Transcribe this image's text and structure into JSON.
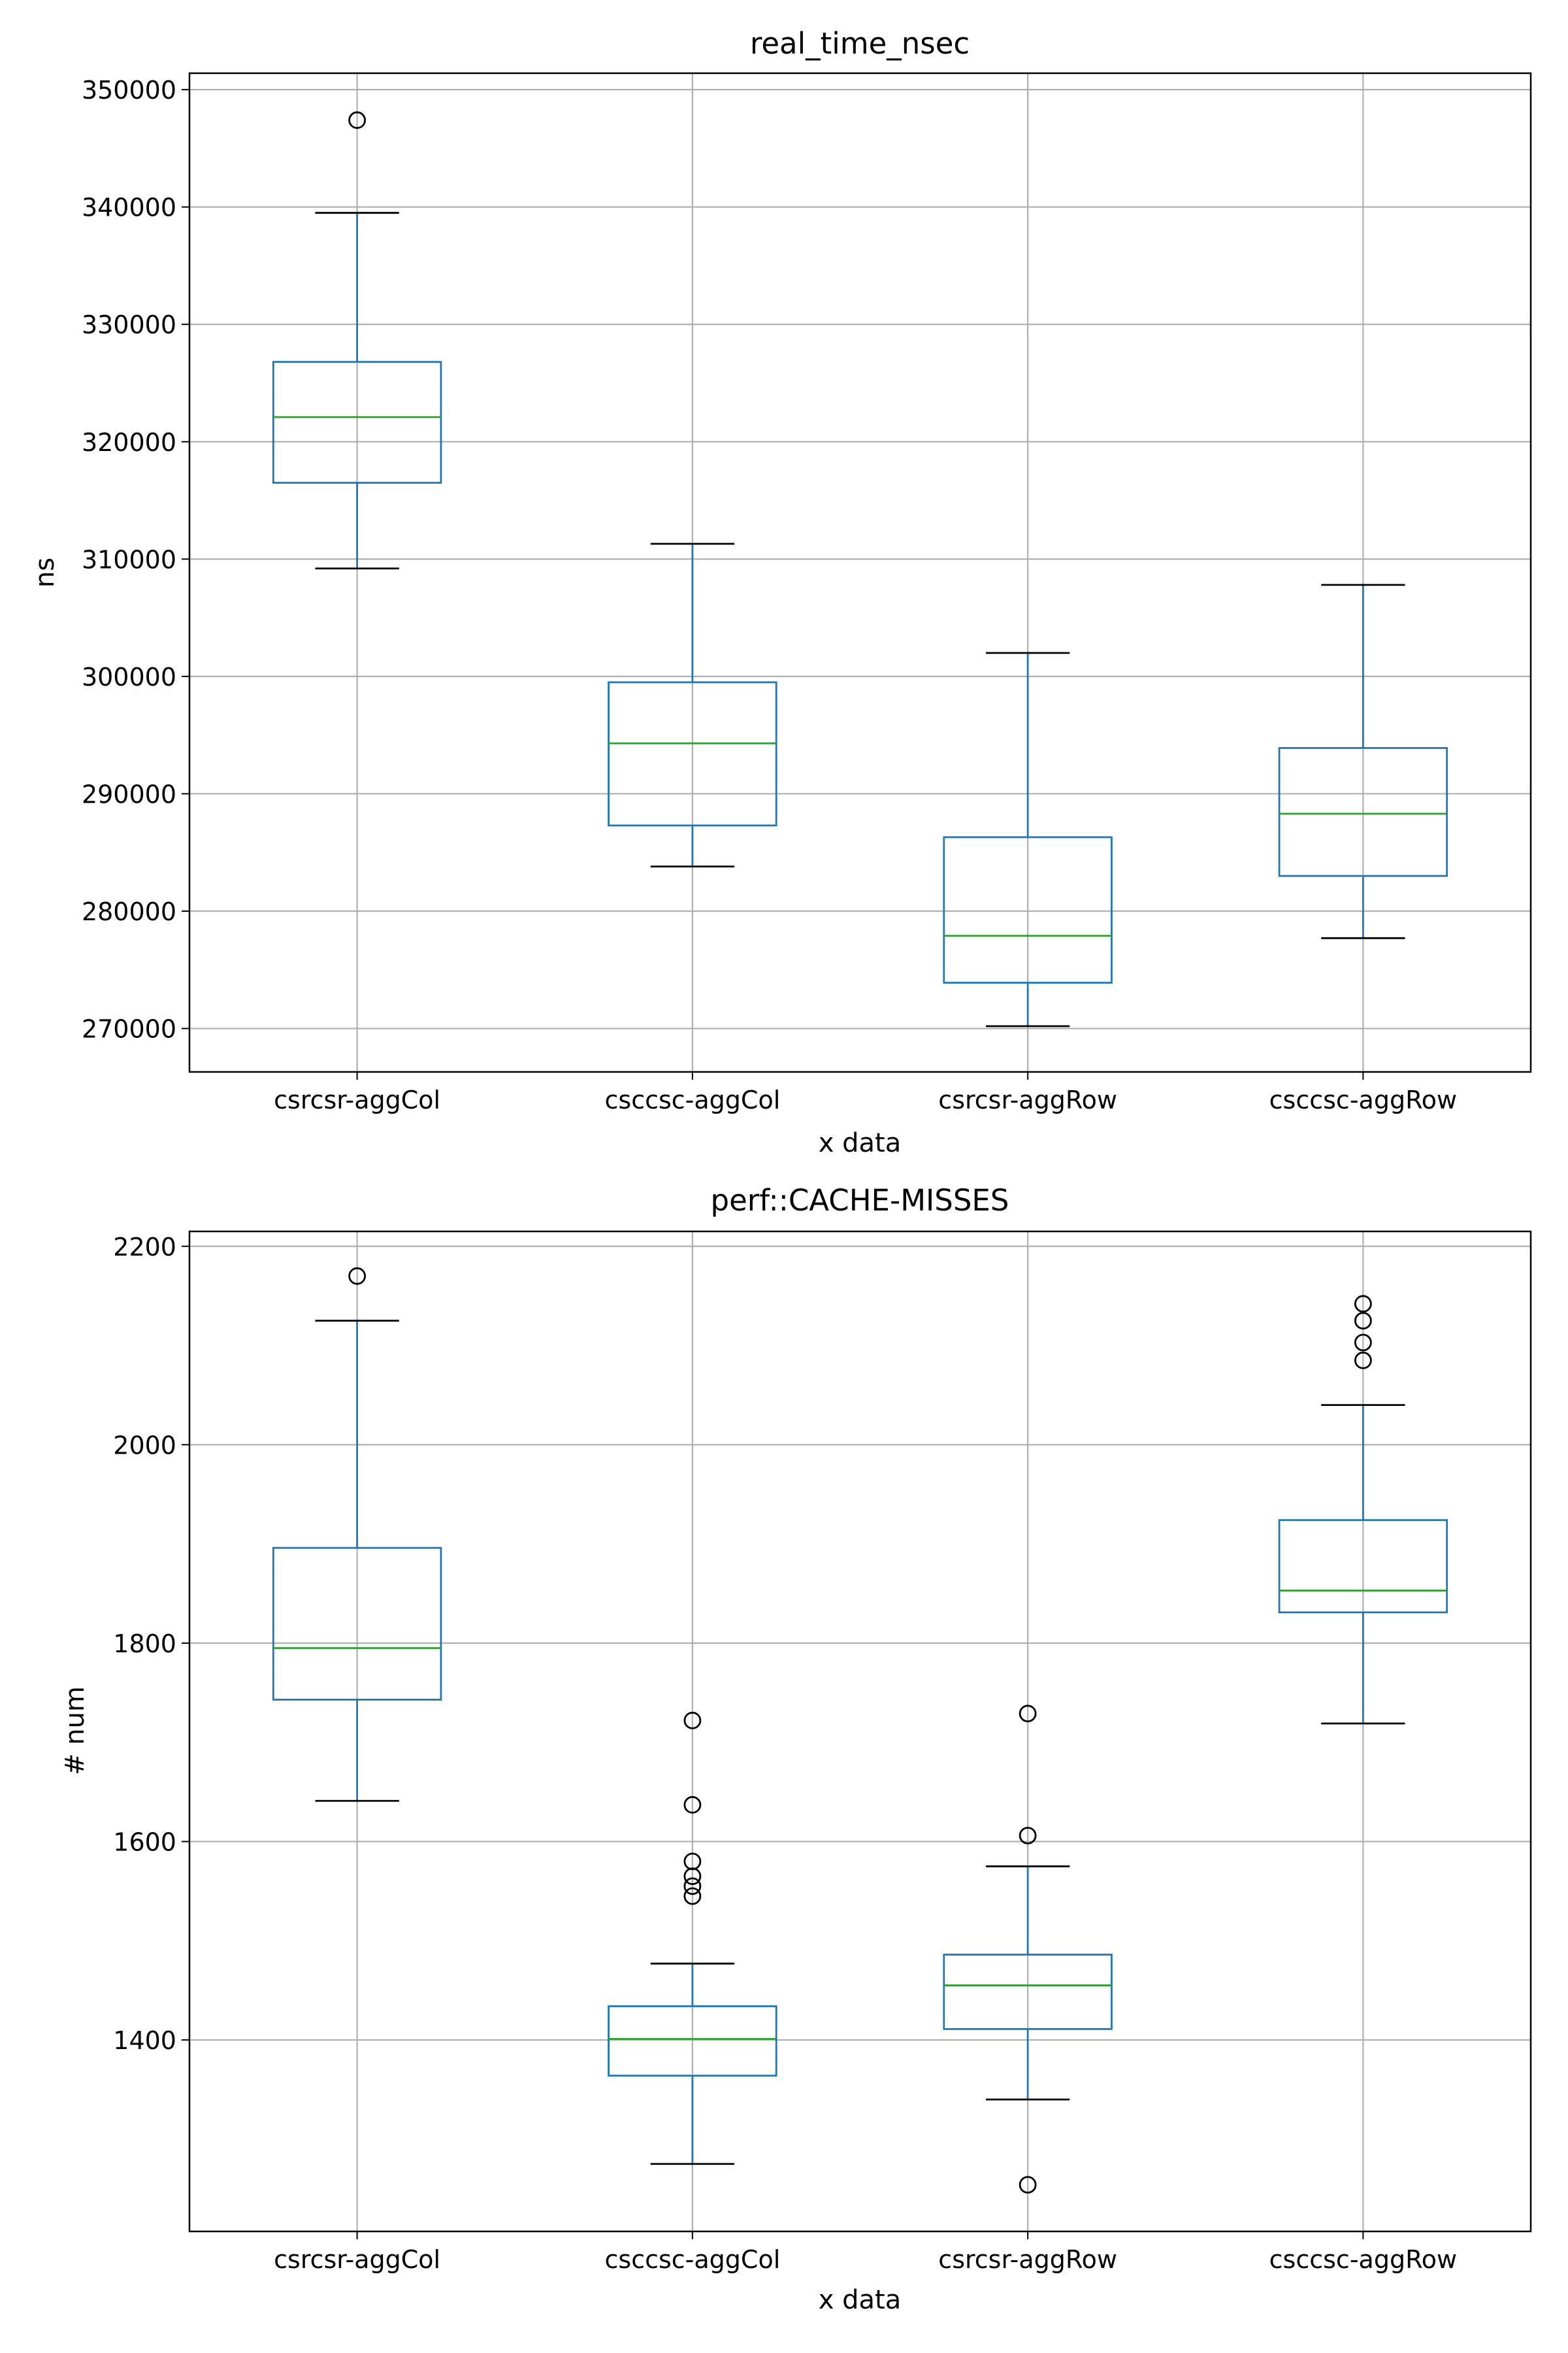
{
  "colors": {
    "box": "#1f77b4",
    "median": "#2ca02c",
    "whisker": "#1f77b4",
    "cap": "#000000",
    "flier": "#000000",
    "grid": "#b0b0b0",
    "axes": "#000000"
  },
  "chart_data": [
    {
      "type": "boxplot",
      "title": "real_time_nsec",
      "xlabel": "x data",
      "ylabel": "ns",
      "ylim": [
        266300,
        351400
      ],
      "yticks": [
        270000,
        280000,
        290000,
        300000,
        310000,
        320000,
        330000,
        340000,
        350000
      ],
      "yticklabels": [
        "270000",
        "280000",
        "290000",
        "300000",
        "310000",
        "320000",
        "330000",
        "340000",
        "350000"
      ],
      "grid": true,
      "categories": [
        "csrcsr-aggCol",
        "csccsc-aggCol",
        "csrcsr-aggRow",
        "csccsc-aggRow"
      ],
      "boxes": [
        {
          "whislo": 309200,
          "q1": 316500,
          "med": 322100,
          "q3": 326800,
          "whishi": 339500,
          "fliers": [
            347400
          ]
        },
        {
          "whislo": 283800,
          "q1": 287300,
          "med": 294300,
          "q3": 299500,
          "whishi": 311300,
          "fliers": []
        },
        {
          "whislo": 270200,
          "q1": 273900,
          "med": 277900,
          "q3": 286300,
          "whishi": 302000,
          "fliers": []
        },
        {
          "whislo": 277700,
          "q1": 283000,
          "med": 288300,
          "q3": 293900,
          "whishi": 307800,
          "fliers": []
        }
      ]
    },
    {
      "type": "boxplot",
      "title": "perf::CACHE-MISSES",
      "xlabel": "x data",
      "ylabel": "# num",
      "ylim": [
        1207,
        2215
      ],
      "yticks": [
        1400,
        1600,
        1800,
        2000,
        2200
      ],
      "yticklabels": [
        "1400",
        "1600",
        "1800",
        "2000",
        "2200"
      ],
      "grid": true,
      "categories": [
        "csrcsr-aggCol",
        "csccsc-aggCol",
        "csrcsr-aggRow",
        "csccsc-aggRow"
      ],
      "boxes": [
        {
          "whislo": 1641,
          "q1": 1743,
          "med": 1795,
          "q3": 1896,
          "whishi": 2125,
          "fliers": [
            2170
          ]
        },
        {
          "whislo": 1275,
          "q1": 1364,
          "med": 1401,
          "q3": 1434,
          "whishi": 1477,
          "fliers": [
            1722,
            1637,
            1580,
            1565,
            1555,
            1545
          ]
        },
        {
          "whislo": 1340,
          "q1": 1411,
          "med": 1455,
          "q3": 1486,
          "whishi": 1575,
          "fliers": [
            1729,
            1606,
            1254
          ]
        },
        {
          "whislo": 1719,
          "q1": 1831,
          "med": 1853,
          "q3": 1924,
          "whishi": 2040,
          "fliers": [
            2142,
            2125,
            2103,
            2085
          ]
        }
      ]
    }
  ]
}
